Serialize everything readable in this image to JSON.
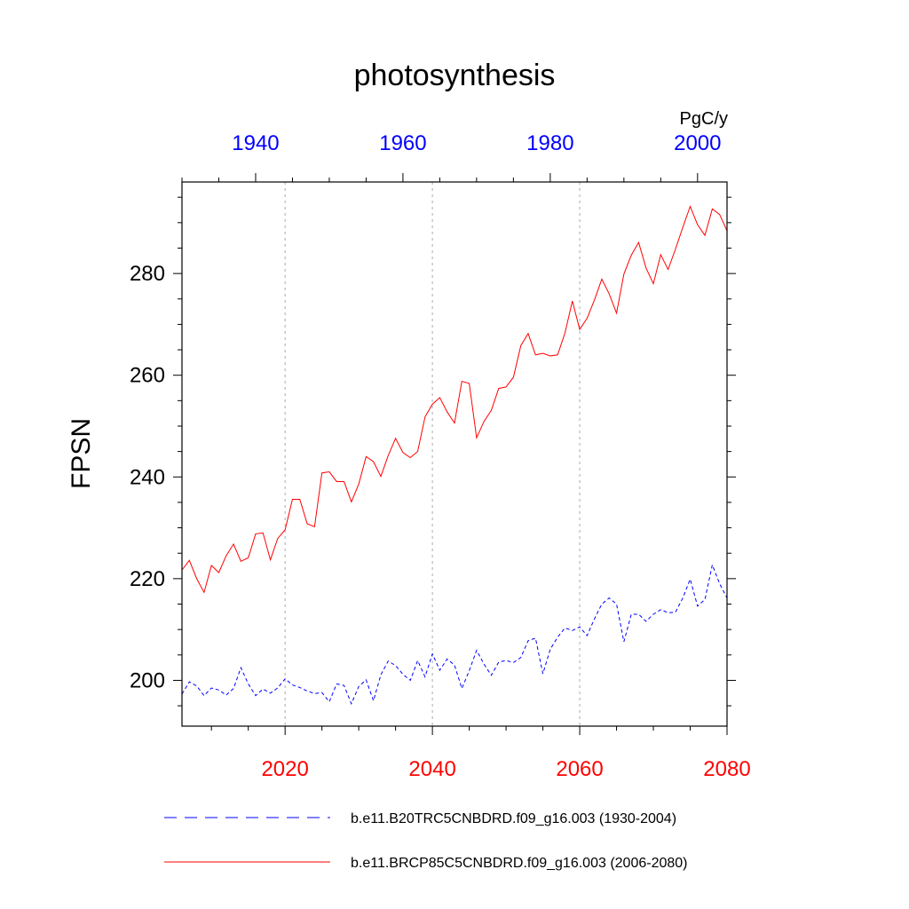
{
  "colors": {
    "historical": "#0000ff",
    "future": "#ff0000",
    "grid": "#aaaaaa",
    "axis": "#000000"
  },
  "chart_data": {
    "type": "line",
    "title": "photosynthesis",
    "ylabel": "FPSN",
    "units_label": "PgC/y",
    "ylim": [
      191,
      298
    ],
    "yticks": [
      200,
      220,
      240,
      260,
      280
    ],
    "y_minor_step": 5,
    "grid": "vertical dashed at bottom-axis major ticks",
    "x_bottom": {
      "range": [
        2006,
        2080
      ],
      "ticks": [
        2020,
        2040,
        2060,
        2080
      ],
      "minor_step": 5,
      "color": "red"
    },
    "x_top": {
      "range": [
        1930,
        2004
      ],
      "ticks": [
        1940,
        1960,
        1980,
        2000
      ],
      "minor_step": 5,
      "color": "blue"
    },
    "legend_placement": "bottom",
    "series": [
      {
        "name": "b.e11.B20TRC5CNBDRD.f09_g16.003 (1930-2004)",
        "axis": "top",
        "color": "blue",
        "style": "dashed",
        "x_start": 1930,
        "values": [
          197.3,
          199.7,
          198.9,
          197.0,
          198.5,
          198.1,
          197.1,
          198.4,
          202.5,
          199.3,
          197.0,
          198.3,
          197.5,
          198.5,
          200.3,
          199.1,
          198.6,
          197.9,
          197.4,
          197.6,
          195.8,
          199.3,
          199.0,
          195.4,
          198.8,
          200.1,
          196.0,
          201.1,
          203.8,
          202.9,
          201.2,
          200.0,
          203.9,
          200.7,
          205.2,
          202.0,
          204.2,
          203.0,
          198.4,
          201.9,
          205.9,
          203.2,
          201.0,
          203.6,
          203.9,
          203.5,
          204.5,
          207.8,
          208.3,
          201.3,
          206.1,
          208.5,
          210.3,
          209.8,
          210.5,
          208.8,
          212.1,
          215.0,
          216.2,
          215.0,
          207.6,
          213.0,
          213.0,
          211.6,
          213.0,
          213.9,
          213.3,
          213.4,
          216.2,
          219.9,
          214.6,
          215.9,
          222.7,
          219.0,
          216.2
        ]
      },
      {
        "name": "b.e11.BRCP85C5CNBDRD.f09_g16.003 (2006-2080)",
        "axis": "bottom",
        "color": "red",
        "style": "solid",
        "x_start": 2006,
        "values": [
          221.7,
          223.6,
          220.0,
          217.3,
          222.6,
          221.2,
          224.5,
          226.8,
          223.4,
          224.1,
          228.8,
          229.0,
          223.7,
          227.9,
          229.6,
          235.6,
          235.6,
          230.8,
          230.2,
          240.8,
          241.0,
          239.1,
          239.1,
          235.1,
          238.6,
          244.0,
          243.0,
          240.1,
          244.2,
          247.6,
          244.8,
          243.8,
          245.0,
          251.8,
          254.3,
          255.6,
          252.8,
          250.6,
          258.8,
          258.4,
          247.7,
          250.9,
          253.1,
          257.4,
          257.7,
          259.6,
          265.8,
          268.2,
          264.0,
          264.3,
          263.8,
          264.0,
          268.3,
          274.6,
          269.0,
          271.2,
          274.8,
          278.9,
          276.0,
          272.2,
          279.9,
          283.6,
          286.1,
          281.1,
          278.0,
          283.7,
          280.8,
          284.8,
          289.1,
          293.2,
          289.6,
          287.5,
          292.7,
          291.6,
          288.4
        ]
      }
    ]
  }
}
